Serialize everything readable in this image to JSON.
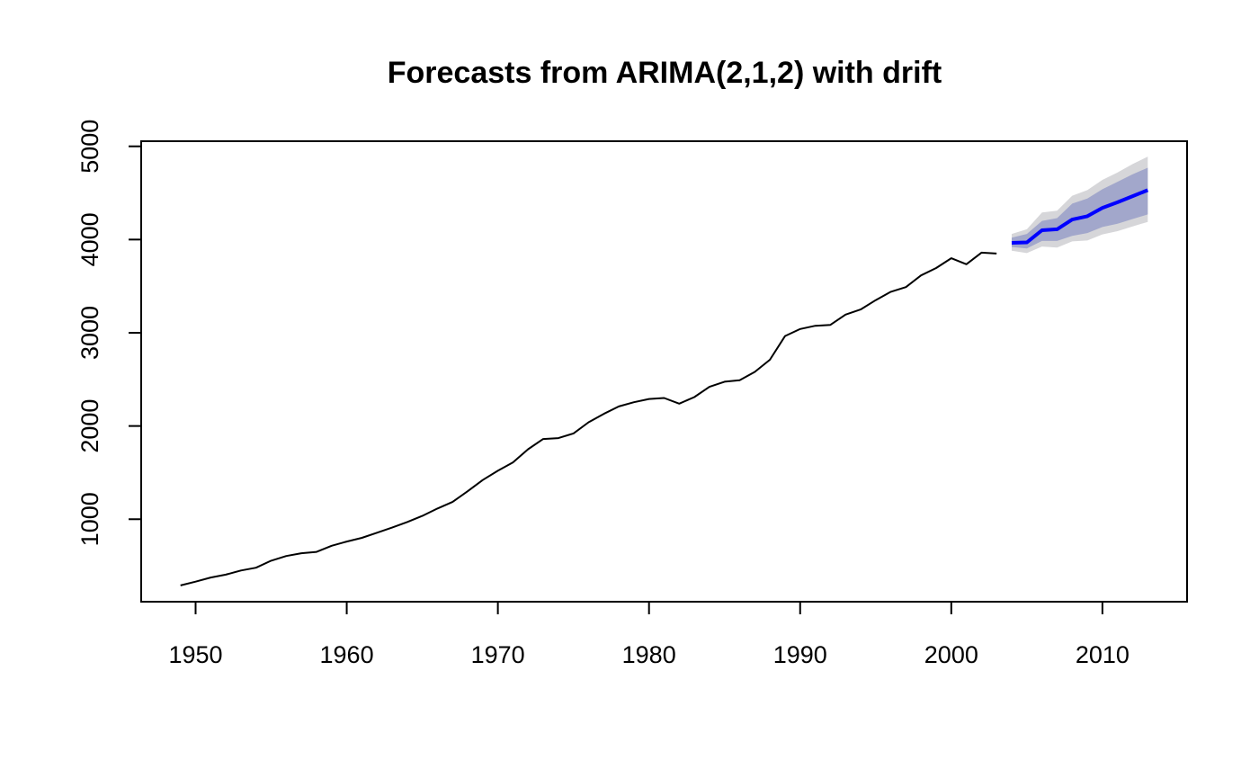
{
  "chart_data": {
    "type": "line",
    "title": "Forecasts from ARIMA(2,1,2) with drift",
    "xlabel": "",
    "ylabel": "",
    "xlim": [
      1946.4,
      2015.6
    ],
    "ylim": [
      115,
      5055
    ],
    "x_ticks": [
      1950,
      1960,
      1970,
      1980,
      1990,
      2000,
      2010
    ],
    "y_ticks": [
      1000,
      2000,
      3000,
      4000,
      5000
    ],
    "grid": false,
    "legend": "none",
    "colors": {
      "observed": "#000000",
      "forecast": "#0000ff",
      "band80": "#a2a7cb",
      "band95": "#d6d6d9"
    },
    "observed": {
      "x": [
        1949,
        1950,
        1951,
        1952,
        1953,
        1954,
        1955,
        1956,
        1957,
        1958,
        1959,
        1960,
        1961,
        1962,
        1963,
        1964,
        1965,
        1966,
        1967,
        1968,
        1969,
        1970,
        1971,
        1972,
        1973,
        1974,
        1975,
        1976,
        1977,
        1978,
        1979,
        1980,
        1981,
        1982,
        1983,
        1984,
        1985,
        1986,
        1987,
        1988,
        1989,
        1990,
        1991,
        1992,
        1993,
        1994,
        1995,
        1996,
        1997,
        1998,
        1999,
        2000,
        2001,
        2002,
        2003
      ],
      "y": [
        290,
        330,
        375,
        405,
        450,
        480,
        555,
        605,
        635,
        650,
        715,
        760,
        800,
        855,
        910,
        970,
        1035,
        1115,
        1185,
        1300,
        1420,
        1520,
        1610,
        1750,
        1860,
        1870,
        1920,
        2040,
        2130,
        2210,
        2255,
        2290,
        2300,
        2240,
        2310,
        2420,
        2475,
        2490,
        2580,
        2710,
        2965,
        3040,
        3075,
        3085,
        3195,
        3250,
        3350,
        3440,
        3490,
        3615,
        3695,
        3800,
        3735,
        3860,
        3850
      ]
    },
    "forecast": {
      "x": [
        2004,
        2005,
        2006,
        2007,
        2008,
        2009,
        2010,
        2011,
        2012,
        2013
      ],
      "mean": [
        3965,
        3970,
        4100,
        4110,
        4215,
        4250,
        4340,
        4400,
        4465,
        4530
      ],
      "lo80": [
        3920,
        3905,
        3985,
        3985,
        4040,
        4070,
        4135,
        4170,
        4220,
        4270
      ],
      "hi80": [
        4020,
        4060,
        4200,
        4230,
        4385,
        4440,
        4540,
        4620,
        4700,
        4770
      ],
      "lo95": [
        3880,
        3855,
        3925,
        3915,
        3980,
        3990,
        4055,
        4090,
        4140,
        4190
      ],
      "hi95": [
        4060,
        4110,
        4290,
        4310,
        4470,
        4530,
        4640,
        4720,
        4810,
        4890
      ]
    }
  }
}
